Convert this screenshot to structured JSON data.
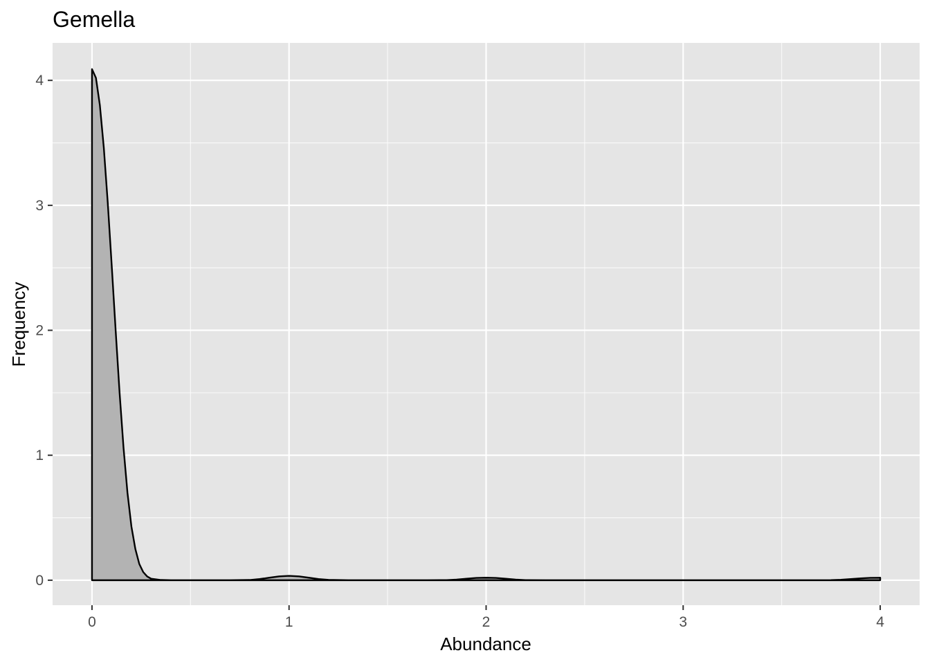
{
  "chart_data": {
    "type": "area",
    "title": "Gemella",
    "xlabel": "Abundance",
    "ylabel": "Frequency",
    "xlim": [
      -0.2,
      4.2
    ],
    "ylim": [
      -0.2,
      4.3
    ],
    "x_ticks": [
      0,
      1,
      2,
      3,
      4
    ],
    "y_ticks": [
      0,
      1,
      2,
      3,
      4
    ],
    "grid": true,
    "legend": "none",
    "colors": {
      "panel_background": "#e5e5e5",
      "grid_line": "#ffffff",
      "fill": "#b3b3b3",
      "line": "#000000"
    },
    "series": [
      {
        "x": [
          0,
          0.02,
          0.04,
          0.06,
          0.08,
          0.1,
          0.12,
          0.14,
          0.16,
          0.18,
          0.2,
          0.22,
          0.24,
          0.26,
          0.28,
          0.3,
          0.35,
          0.4,
          0.5,
          0.6,
          0.7,
          0.8,
          0.85,
          0.9,
          0.95,
          1.0,
          1.05,
          1.1,
          1.15,
          1.2,
          1.3,
          1.5,
          1.7,
          1.8,
          1.85,
          1.9,
          1.95,
          2.0,
          2.05,
          2.1,
          2.15,
          2.2,
          2.3,
          2.5,
          3.0,
          3.5,
          3.7,
          3.75,
          3.8,
          3.85,
          3.9,
          3.95,
          4.0
        ],
        "y": [
          4.09,
          4.02,
          3.8,
          3.46,
          3.02,
          2.52,
          2.0,
          1.5,
          1.06,
          0.7,
          0.43,
          0.25,
          0.13,
          0.065,
          0.03,
          0.012,
          0.002,
          0.0,
          0.0,
          0.0,
          0.0,
          0.002,
          0.009,
          0.02,
          0.031,
          0.035,
          0.031,
          0.02,
          0.009,
          0.003,
          0.0,
          0.0,
          0.0,
          0.001,
          0.005,
          0.012,
          0.018,
          0.02,
          0.018,
          0.012,
          0.005,
          0.001,
          0.0,
          0.0,
          0.0,
          0.0,
          0.0,
          0.001,
          0.004,
          0.009,
          0.015,
          0.019,
          0.02
        ]
      }
    ]
  }
}
